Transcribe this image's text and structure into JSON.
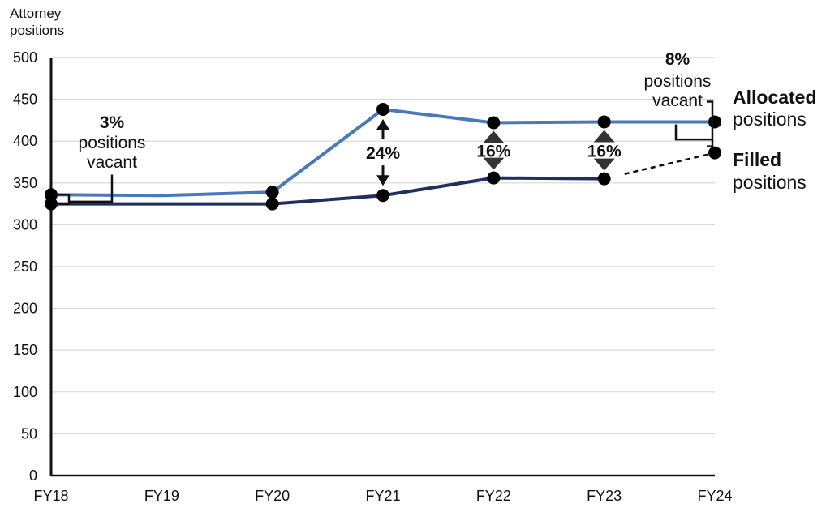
{
  "chart_data": {
    "type": "line",
    "ylabel": [
      "Attorney",
      "positions"
    ],
    "ylim": [
      0,
      500
    ],
    "yticks": [
      0,
      50,
      100,
      150,
      200,
      250,
      300,
      350,
      400,
      450,
      500
    ],
    "categories": [
      "FY18",
      "FY19",
      "FY20",
      "FY21",
      "FY22",
      "FY23",
      "FY24"
    ],
    "grid": true,
    "series": [
      {
        "name_bold": "Allocated",
        "name_rest": "positions",
        "color": "#4a78bd",
        "values": [
          336,
          335,
          339,
          438,
          422,
          423,
          423
        ],
        "markers": [
          0,
          2,
          3,
          4,
          5,
          6
        ]
      },
      {
        "name_bold": "Filled",
        "name_rest": "positions",
        "color": "#1f2f5e",
        "values": [
          325,
          325,
          325,
          335,
          356,
          355,
          386
        ],
        "markers": [
          0,
          2,
          3,
          4,
          5,
          6
        ],
        "dashed_from_index": 5
      }
    ],
    "annotations": [
      {
        "category": "FY18",
        "bold": "3%",
        "lines": [
          "positions",
          "vacant"
        ]
      },
      {
        "category": "FY21",
        "bold": "24%"
      },
      {
        "category": "FY22",
        "bold": "16%"
      },
      {
        "category": "FY23",
        "bold": "16%"
      },
      {
        "category": "FY24",
        "bold": "8%",
        "lines": [
          "positions",
          "vacant"
        ]
      }
    ]
  }
}
